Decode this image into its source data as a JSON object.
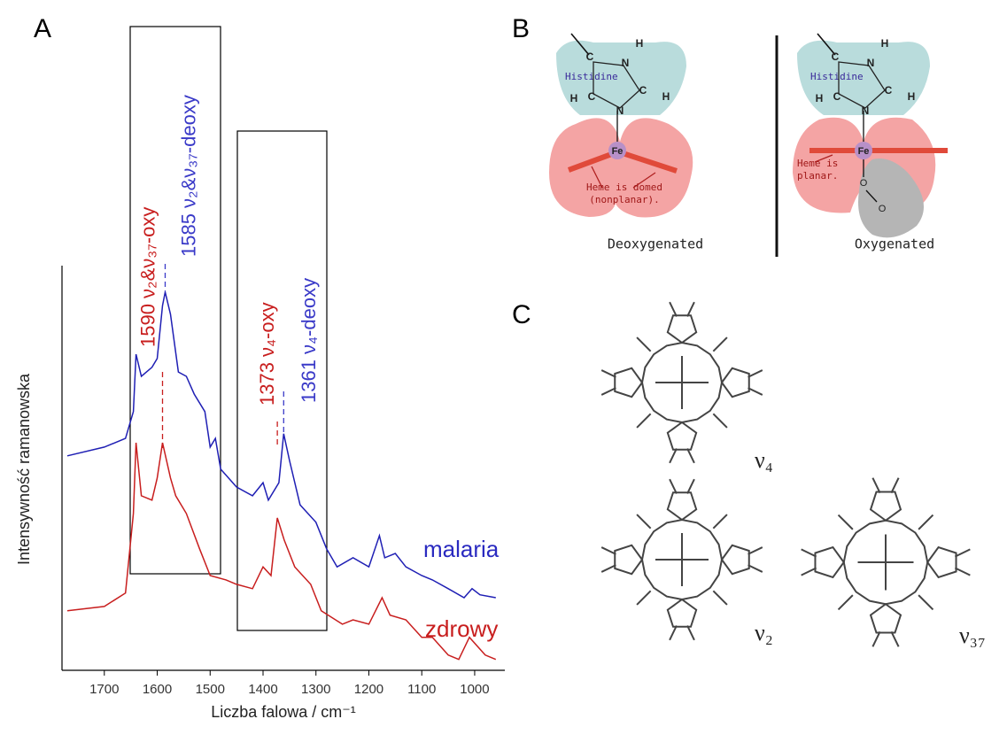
{
  "panel_labels": [
    "A",
    "B",
    "C"
  ],
  "chart_data": {
    "type": "line",
    "x_label": "Liczba falowa / cm⁻¹",
    "y_label": "Intensywność ramanowska",
    "xlim": [
      1780,
      943
    ],
    "ylim": [
      -11.5,
      100
    ],
    "xticks": [
      1700,
      1600,
      1500,
      1400,
      1300,
      1200,
      1100,
      1000
    ],
    "series": [
      {
        "name": "malaria",
        "color": "#1f1fb4",
        "x": [
          1770,
          1700,
          1660,
          1645,
          1640,
          1630,
          1610,
          1600,
          1590,
          1585,
          1575,
          1560,
          1545,
          1530,
          1510,
          1500,
          1490,
          1480,
          1450,
          1420,
          1400,
          1390,
          1370,
          1361,
          1350,
          1330,
          1300,
          1280,
          1260,
          1230,
          1200,
          1180,
          1170,
          1150,
          1130,
          1100,
          1080,
          1050,
          1020,
          1005,
          990,
          960
        ],
        "values": [
          47.6,
          50,
          52.4,
          59.8,
          75.6,
          69.5,
          72,
          74.4,
          89,
          92.7,
          86.6,
          70.7,
          69.5,
          64.6,
          59.8,
          50,
          52.4,
          43.9,
          39,
          36.6,
          40.2,
          35.4,
          40.2,
          53.7,
          46.3,
          34.1,
          29.3,
          22,
          17,
          19.5,
          17,
          25.6,
          19.5,
          20.7,
          17,
          14.6,
          13.4,
          11,
          8.5,
          11,
          9.3,
          8.5
        ]
      },
      {
        "name": "zdrowy",
        "color": "#c81e1e",
        "x": [
          1770,
          1700,
          1660,
          1645,
          1640,
          1630,
          1610,
          1600,
          1590,
          1575,
          1565,
          1545,
          1520,
          1500,
          1470,
          1450,
          1420,
          1400,
          1385,
          1373,
          1360,
          1340,
          1310,
          1290,
          1250,
          1230,
          1200,
          1175,
          1160,
          1130,
          1100,
          1080,
          1050,
          1030,
          1010,
          980,
          960
        ],
        "values": [
          4.9,
          6.1,
          9.8,
          31.7,
          51.2,
          36.6,
          35.4,
          41.5,
          51.2,
          41.5,
          36.6,
          31.7,
          22,
          14.6,
          13.4,
          12.2,
          11,
          17,
          14.6,
          30.5,
          24.4,
          17,
          12.2,
          4.9,
          1.2,
          2.4,
          1.2,
          8.5,
          3.7,
          2.4,
          -2.4,
          -2.4,
          -7.3,
          -8.5,
          -2.4,
          -7.3,
          -8.5
        ]
      }
    ],
    "annotations": [
      {
        "text": "1590 ν₂&ν₃₇-oxy",
        "x": 1590,
        "color": "#c81e1e"
      },
      {
        "text": "1585 ν₂&ν₃₇-deoxy",
        "x": 1585,
        "color": "#3a3ac8"
      },
      {
        "text": "1373 ν₄-oxy",
        "x": 1373,
        "color": "#c81e1e"
      },
      {
        "text": "1361 ν₄-deoxy",
        "x": 1361,
        "color": "#3a3ac8"
      }
    ]
  },
  "diagram": {
    "ring_labels": [
      "C",
      "N",
      "H",
      "C",
      "H",
      "N",
      "C",
      "H",
      "H"
    ],
    "histidine": "Histidine",
    "fe": "Fe",
    "left_note": "Heme is domed (nonplanar).",
    "left_caption": "Deoxygenated",
    "right_note": "Heme is planar.",
    "oxygen": "O",
    "right_caption": "Oxygenated"
  },
  "modes": [
    "ν₄",
    "ν₂",
    "ν₃₇"
  ]
}
